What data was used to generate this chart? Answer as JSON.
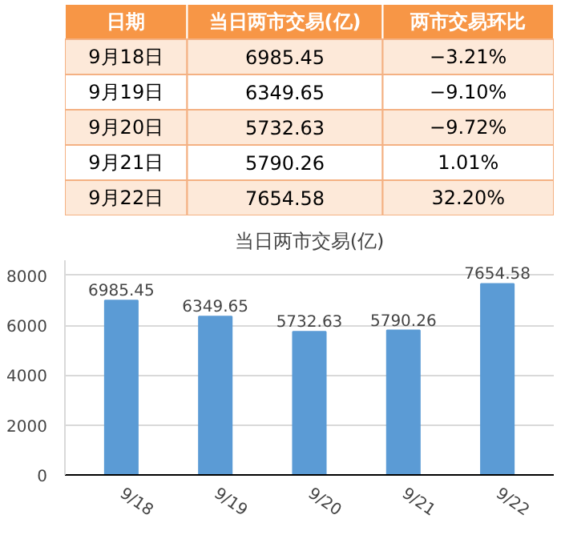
{
  "chart_data": [
    {
      "type": "other",
      "categories": [
        "日期",
        "当日两市交易(亿)",
        "两市交易环比"
      ],
      "annotations": [
        "9月18日",
        "6985.45",
        "−3.21%",
        "9月19日",
        "6349.65",
        "−9.10%",
        "9月20日",
        "5732.63",
        "−9.72%",
        "9月21日",
        "5790.26",
        "1.01%",
        "9月22日",
        "7654.58",
        "32.20%"
      ]
    },
    {
      "type": "bar",
      "title": "当日两市交易(亿)",
      "categories": [
        "9/18",
        "9/19",
        "9/20",
        "9/21",
        "9/22"
      ],
      "values": [
        6985.45,
        6349.65,
        5732.63,
        5790.26,
        7654.58
      ],
      "color": "#5b9bd5",
      "ylim": [
        0,
        8600
      ],
      "yticks": [
        0,
        2000,
        4000,
        6000,
        8000
      ],
      "grid": "y",
      "data_labels": true
    }
  ]
}
